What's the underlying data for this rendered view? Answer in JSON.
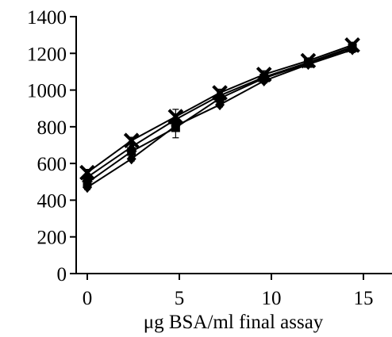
{
  "chart_data": {
    "type": "line",
    "title": "",
    "xlabel": "μg BSA/ml final assay",
    "ylabel": "",
    "xlim": [
      0,
      15
    ],
    "ylim": [
      0,
      1400
    ],
    "xticks": [
      0,
      5,
      10,
      15
    ],
    "yticks": [
      0,
      200,
      400,
      600,
      800,
      1000,
      1200,
      1400
    ],
    "grid": false,
    "legend": "none",
    "x": [
      0,
      2.4,
      4.8,
      7.2,
      9.6,
      12,
      14.4
    ],
    "series": [
      {
        "marker": "cross",
        "values": [
          550,
          725,
          855,
          985,
          1085,
          1160,
          1245
        ],
        "errors": [
          18,
          18,
          40,
          20,
          20,
          15,
          15
        ]
      },
      {
        "marker": "triangle",
        "values": [
          525,
          690,
          840,
          970,
          1070,
          1150,
          1235
        ],
        "errors": [
          15,
          15,
          30,
          15,
          15,
          15,
          15
        ]
      },
      {
        "marker": "square",
        "values": [
          495,
          665,
          795,
          955,
          1065,
          1145,
          1230
        ],
        "errors": [
          15,
          15,
          55,
          15,
          15,
          15,
          15
        ]
      },
      {
        "marker": "diamond",
        "values": [
          470,
          625,
          805,
          920,
          1050,
          1140,
          1220
        ],
        "errors": [
          12,
          12,
          20,
          12,
          12,
          12,
          15
        ]
      }
    ]
  }
}
